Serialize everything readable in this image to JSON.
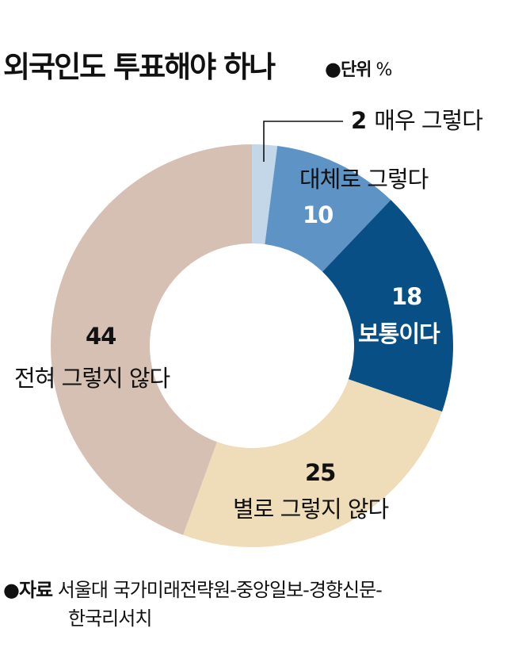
{
  "header": {
    "title": "외국인도 투표해야 하나",
    "unit_bullet": "●",
    "unit_label": "단위",
    "unit_value": "%"
  },
  "chart_data": {
    "type": "pie",
    "subtype": "donut",
    "title": "외국인도 투표해야 하나",
    "unit": "%",
    "start_angle_deg": 0,
    "direction": "clockwise",
    "categories": [
      "매우 그렇다",
      "대체로 그렇다",
      "보통이다",
      "별로 그렇지 않다",
      "전혀 그렇지 않다"
    ],
    "values": [
      2,
      10,
      18,
      25,
      44
    ],
    "colors": [
      "#c3d7e8",
      "#5e93c6",
      "#084f86",
      "#efdcb8",
      "#d6c0b4"
    ],
    "labels": [
      {
        "value": "2",
        "text": "매우 그렇다"
      },
      {
        "value": "10",
        "text": "대체로 그렇다"
      },
      {
        "value": "18",
        "text": "보통이다"
      },
      {
        "value": "25",
        "text": "별로 그렇지 않다"
      },
      {
        "value": "44",
        "text": "전혀 그렇지 않다"
      }
    ]
  },
  "source": {
    "bullet": "●",
    "label": "자료",
    "line1": "서울대 국가미래전략원-중앙일보-경향신문-",
    "line2": "한국리서치"
  }
}
